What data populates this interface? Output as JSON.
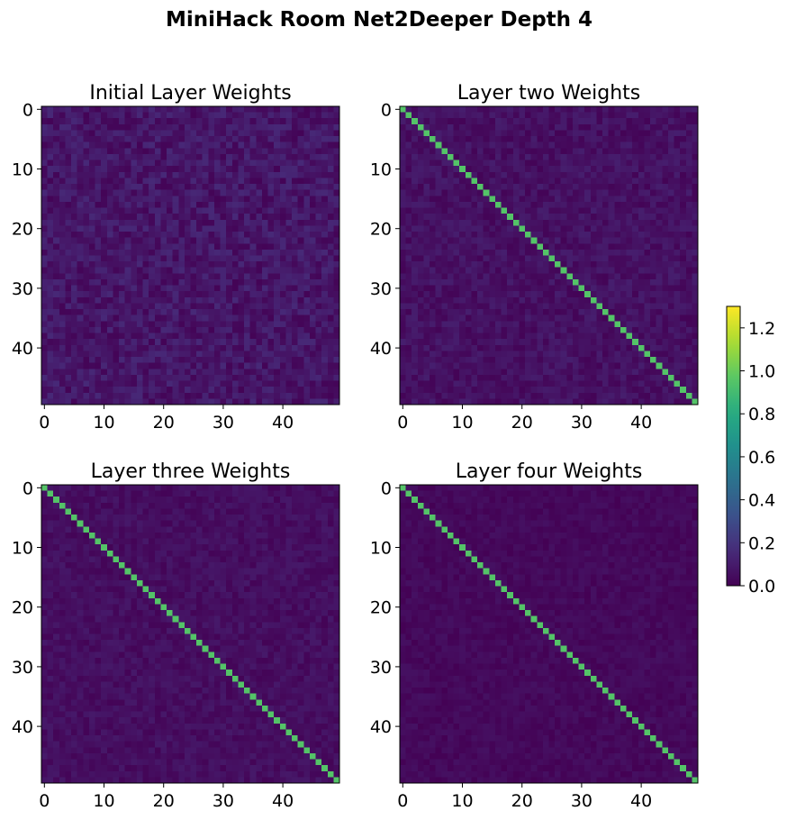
{
  "figure": {
    "suptitle": "MiniHack Room Net2Deeper Depth 4"
  },
  "chart_data": [
    {
      "type": "heatmap",
      "title": "Initial Layer Weights",
      "rows": 50,
      "cols": 50,
      "diagonal_value": null,
      "offdiag_mean": 0.08,
      "offdiag_spread": 0.07,
      "xticks": [
        0,
        10,
        20,
        30,
        40
      ],
      "yticks": [
        0,
        10,
        20,
        30,
        40
      ],
      "xlim": [
        -0.5,
        49.5
      ],
      "ylim": [
        49.5,
        -0.5
      ]
    },
    {
      "type": "heatmap",
      "title": "Layer two Weights",
      "rows": 50,
      "cols": 50,
      "diagonal_value": 0.95,
      "offdiag_mean": 0.06,
      "offdiag_spread": 0.05,
      "xticks": [
        0,
        10,
        20,
        30,
        40
      ],
      "yticks": [
        0,
        10,
        20,
        30,
        40
      ],
      "xlim": [
        -0.5,
        49.5
      ],
      "ylim": [
        49.5,
        -0.5
      ]
    },
    {
      "type": "heatmap",
      "title": "Layer three Weights",
      "rows": 50,
      "cols": 50,
      "diagonal_value": 0.95,
      "offdiag_mean": 0.05,
      "offdiag_spread": 0.04,
      "xticks": [
        0,
        10,
        20,
        30,
        40
      ],
      "yticks": [
        0,
        10,
        20,
        30,
        40
      ],
      "xlim": [
        -0.5,
        49.5
      ],
      "ylim": [
        49.5,
        -0.5
      ]
    },
    {
      "type": "heatmap",
      "title": "Layer four Weights",
      "rows": 50,
      "cols": 50,
      "diagonal_value": 0.95,
      "offdiag_mean": 0.03,
      "offdiag_spread": 0.03,
      "xticks": [
        0,
        10,
        20,
        30,
        40
      ],
      "yticks": [
        0,
        10,
        20,
        30,
        40
      ],
      "xlim": [
        -0.5,
        49.5
      ],
      "ylim": [
        49.5,
        -0.5
      ]
    }
  ],
  "colorbar": {
    "colormap": "viridis",
    "range": [
      0.0,
      1.3
    ],
    "ticks": [
      0.0,
      0.2,
      0.4,
      0.6,
      0.8,
      1.0,
      1.2
    ],
    "tick_labels": [
      "0.0",
      "0.2",
      "0.4",
      "0.6",
      "0.8",
      "1.0",
      "1.2"
    ]
  }
}
